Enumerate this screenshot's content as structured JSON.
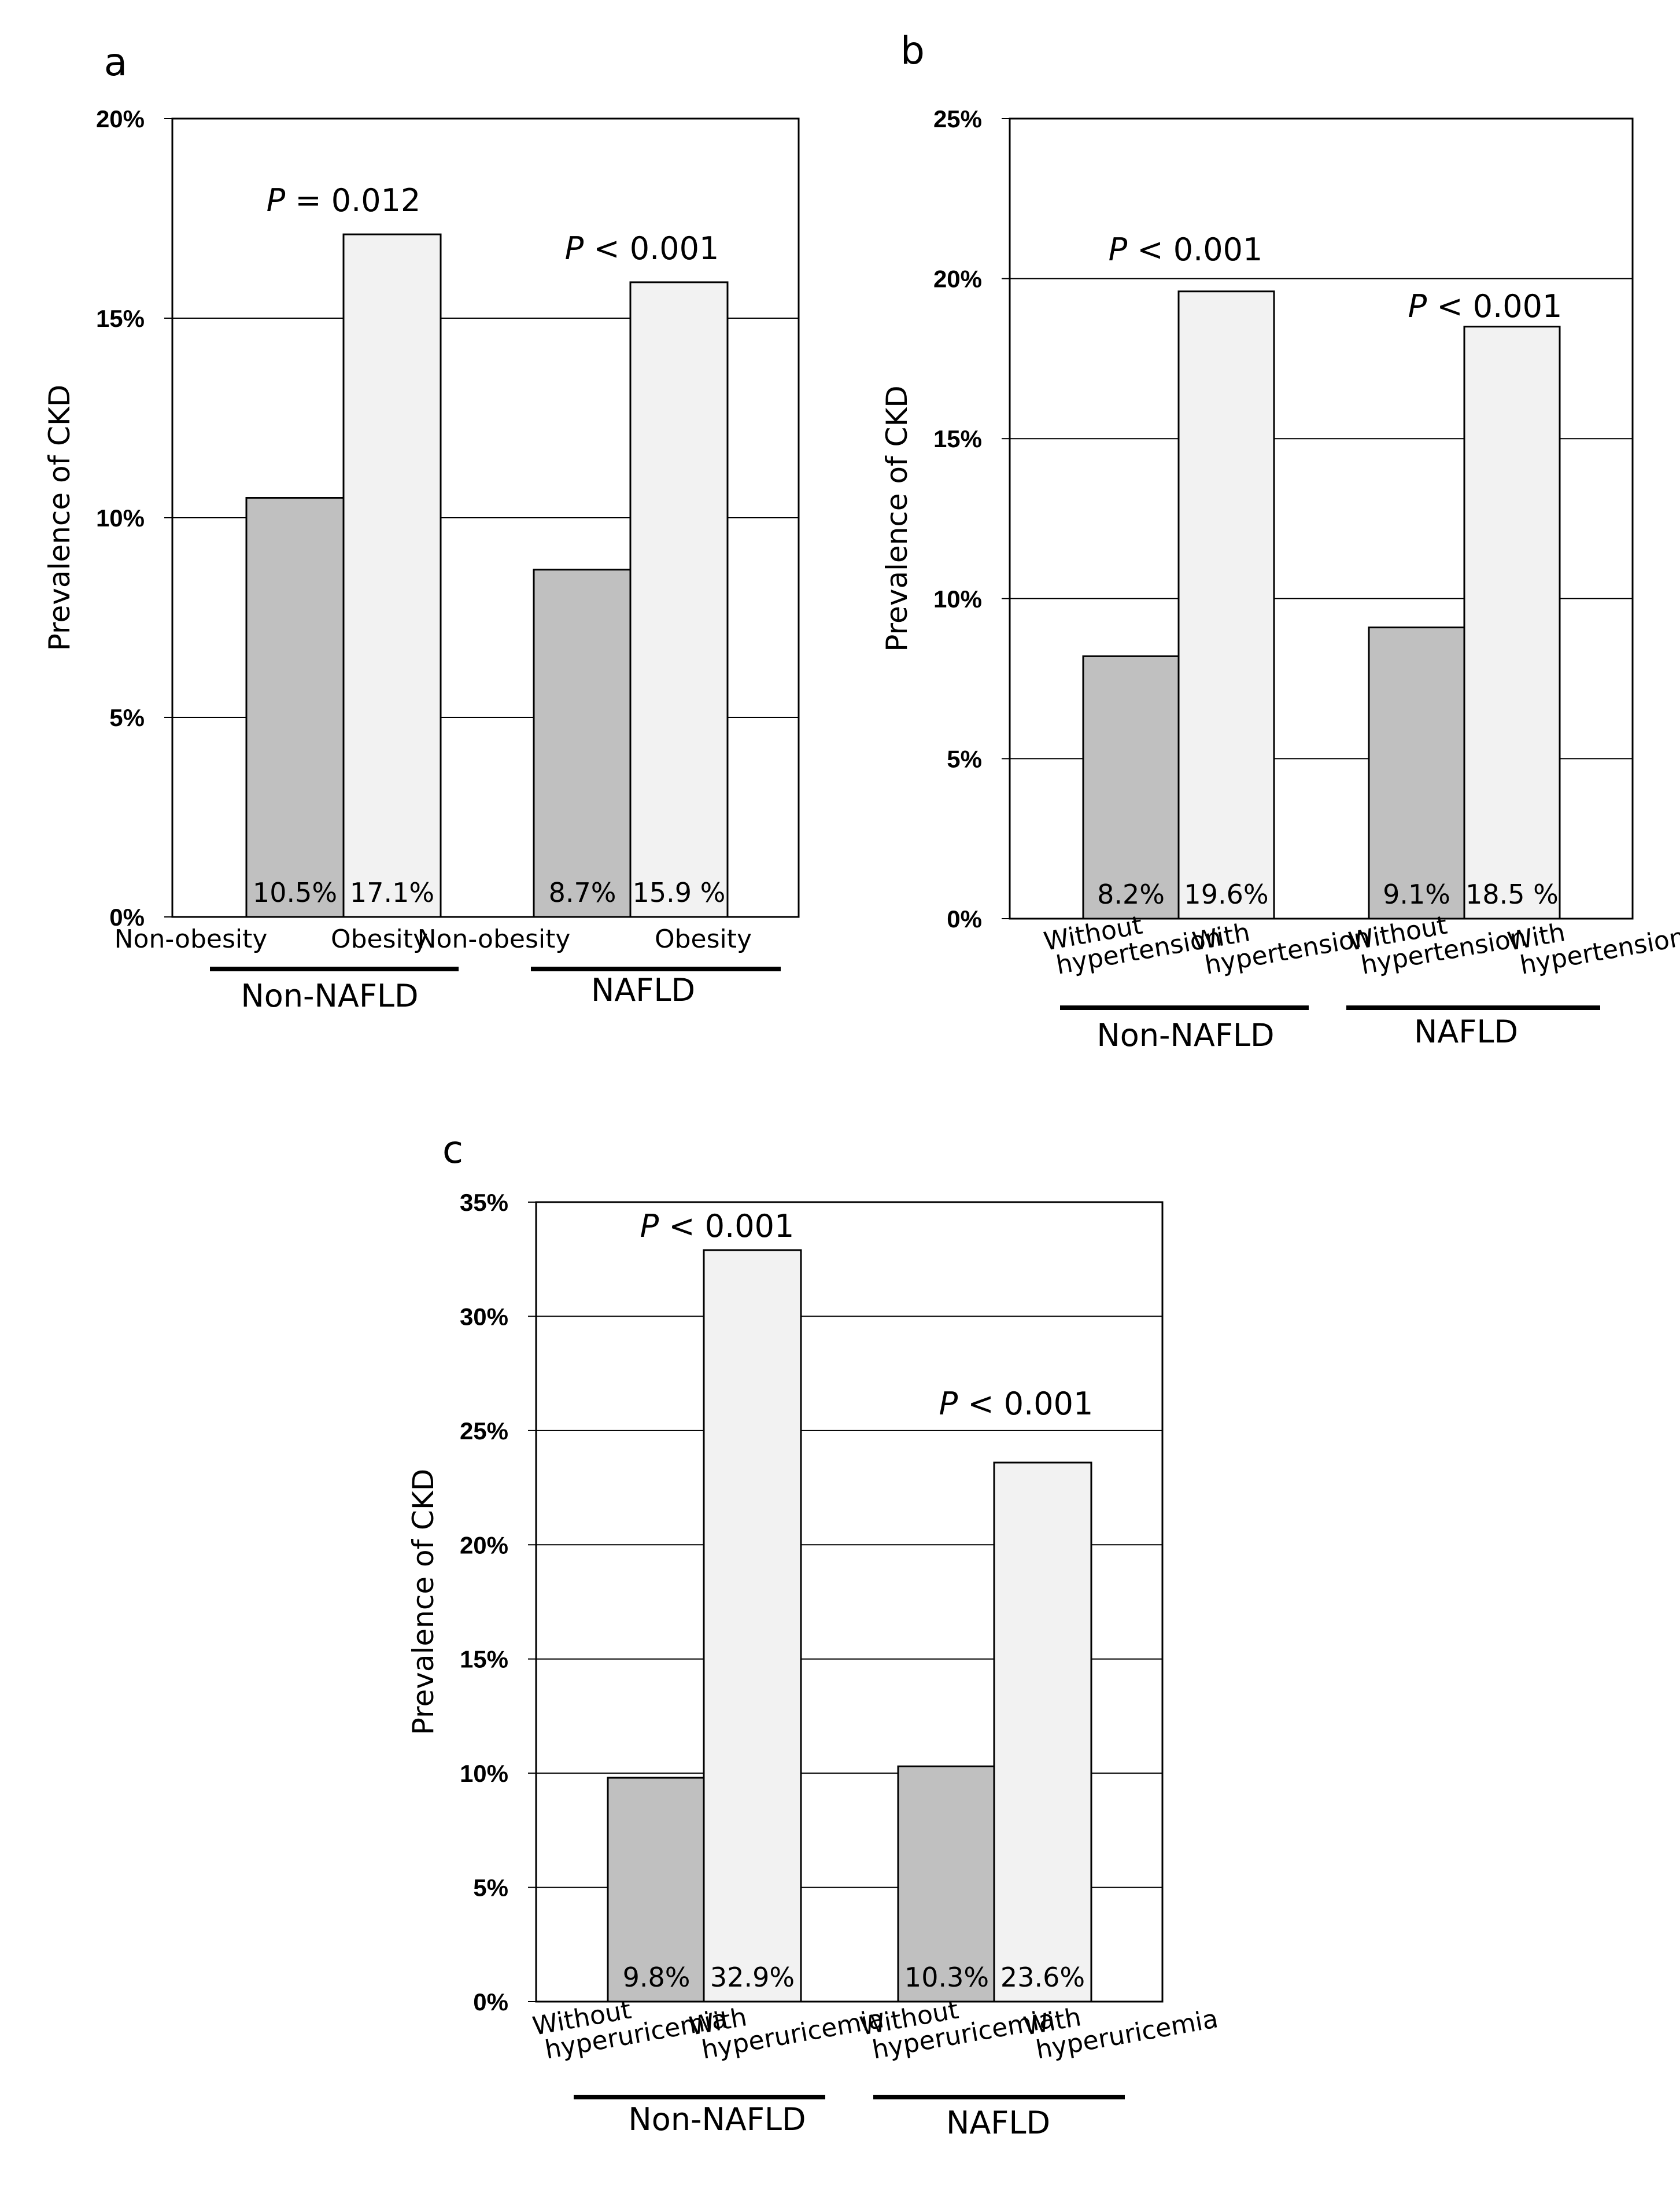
{
  "figure": {
    "y_axis_label": "Prevalence of CKD"
  },
  "chart_data": [
    {
      "panel": "a",
      "type": "bar",
      "ylabel": "Prevalence of CKD",
      "ylim": [
        0,
        20
      ],
      "yticks": [
        "0%",
        "5%",
        "10%",
        "15%",
        "20%"
      ],
      "grid": true,
      "groups": [
        {
          "name": "Non-NAFLD",
          "p_prefix": "P",
          "p_text": " = 0.012",
          "bars": [
            {
              "category": "Non-obesity",
              "value": 10.5,
              "label": "10.5%",
              "color": "#c0c0c0"
            },
            {
              "category": "Obesity",
              "value": 17.1,
              "label": "17.1%",
              "color": "#f2f2f2"
            }
          ]
        },
        {
          "name": "NAFLD",
          "p_prefix": "P",
          "p_text": " < 0.001",
          "bars": [
            {
              "category": "Non-obesity",
              "value": 8.7,
              "label": "8.7%",
              "color": "#c0c0c0"
            },
            {
              "category": "Obesity",
              "value": 15.9,
              "label": "15.9 %",
              "color": "#f2f2f2"
            }
          ]
        }
      ]
    },
    {
      "panel": "b",
      "type": "bar",
      "ylabel": "Prevalence of CKD",
      "ylim": [
        0,
        25
      ],
      "yticks": [
        "0%",
        "5%",
        "10%",
        "15%",
        "20%",
        "25%"
      ],
      "grid": true,
      "groups": [
        {
          "name": "Non-NAFLD",
          "p_prefix": "P",
          "p_text": " < 0.001",
          "bars": [
            {
              "category": "Without hypertension",
              "value": 8.2,
              "label": "8.2%",
              "color": "#c0c0c0"
            },
            {
              "category": "With hypertension",
              "value": 19.6,
              "label": "19.6%",
              "color": "#f2f2f2"
            }
          ]
        },
        {
          "name": "NAFLD",
          "p_prefix": "P",
          "p_text": " < 0.001",
          "bars": [
            {
              "category": "Without hypertension",
              "value": 9.1,
              "label": "9.1%",
              "color": "#c0c0c0"
            },
            {
              "category": "With hypertension",
              "value": 18.5,
              "label": "18.5 %",
              "color": "#f2f2f2"
            }
          ]
        }
      ]
    },
    {
      "panel": "c",
      "type": "bar",
      "ylabel": "Prevalence of CKD",
      "ylim": [
        0,
        35
      ],
      "yticks": [
        "0%",
        "5%",
        "10%",
        "15%",
        "20%",
        "25%",
        "30%",
        "35%"
      ],
      "grid": true,
      "groups": [
        {
          "name": "Non-NAFLD",
          "p_prefix": "P",
          "p_text": " < 0.001",
          "bars": [
            {
              "category": "Without hyperuricemia",
              "value": 9.8,
              "label": "9.8%",
              "color": "#c0c0c0"
            },
            {
              "category": "With hyperuricemia",
              "value": 32.9,
              "label": "32.9%",
              "color": "#f2f2f2"
            }
          ]
        },
        {
          "name": "NAFLD",
          "p_prefix": "P",
          "p_text": " < 0.001",
          "bars": [
            {
              "category": "Without hyperuricemia",
              "value": 10.3,
              "label": "10.3%",
              "color": "#c0c0c0"
            },
            {
              "category": "With hyperuricemia",
              "value": 23.6,
              "label": "23.6%",
              "color": "#f2f2f2"
            }
          ]
        }
      ]
    }
  ]
}
